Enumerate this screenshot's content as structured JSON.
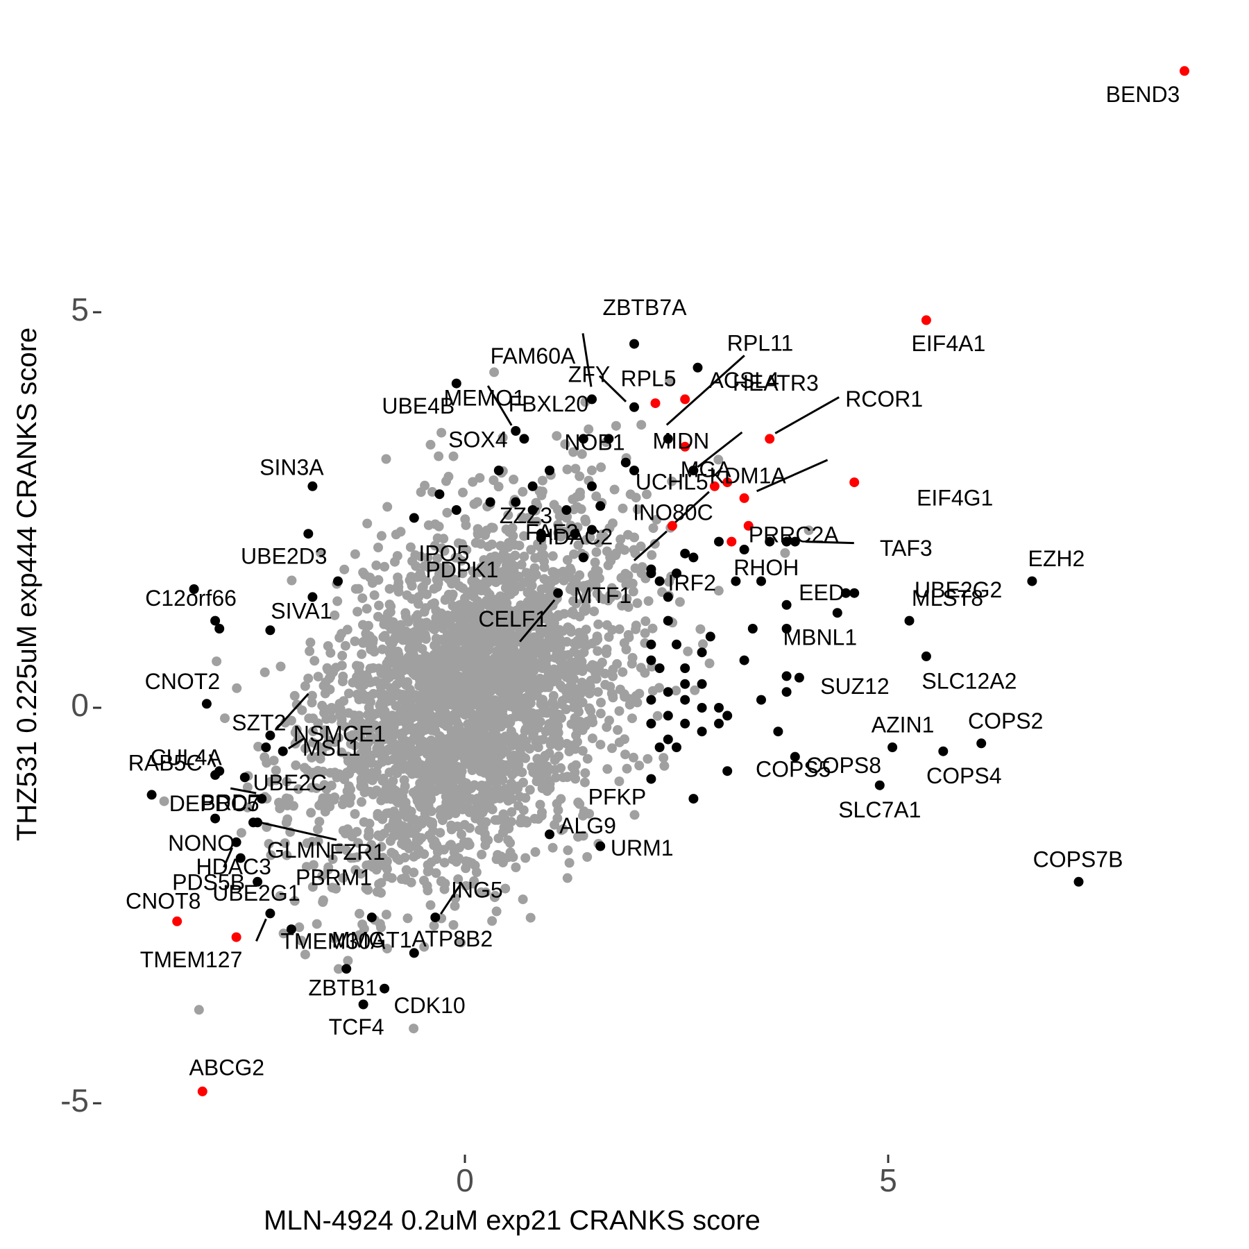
{
  "colors": {
    "background_points": "#a0a0a0",
    "hit_points": "#000000",
    "highlight_points": "#ff0000",
    "tick_text": "#4d4d4d",
    "tick_mark": "#333333"
  },
  "chart_data": {
    "type": "scatter",
    "title": "",
    "xlabel": "MLN-4924 0.2uM exp21 CRANKS score",
    "ylabel": "THZ531 0.225uM exp444 CRANKS score",
    "xlim": [
      -5.1,
      8.8
    ],
    "ylim": [
      -5.5,
      8.5
    ],
    "xticks": [
      0,
      5
    ],
    "xtick_labels": [
      "0",
      "5"
    ],
    "yticks": [
      -5,
      0,
      5
    ],
    "ytick_labels": [
      "-5",
      "0",
      "5"
    ],
    "grid": false,
    "legend": "none",
    "background_cloud": {
      "description_count": 3000,
      "center": [
        0.05,
        0.15
      ],
      "spread": [
        1.05,
        1.3
      ],
      "color": "#a0a0a0"
    },
    "unlabeled_hits": [
      [
        -3.2,
        1.5
      ],
      [
        -2.9,
        1.0
      ],
      [
        -1.8,
        1.4
      ],
      [
        -1.5,
        1.6
      ],
      [
        -0.3,
        2.7
      ],
      [
        -0.6,
        2.4
      ],
      [
        -0.1,
        2.5
      ],
      [
        0.3,
        2.6
      ],
      [
        0.6,
        2.6
      ],
      [
        0.8,
        2.8
      ],
      [
        0.9,
        2.2
      ],
      [
        0.8,
        2.5
      ],
      [
        1.2,
        2.5
      ],
      [
        1.3,
        2.2
      ],
      [
        1.5,
        2.8
      ],
      [
        1.4,
        3.4
      ],
      [
        1.7,
        3.4
      ],
      [
        1.9,
        3.1
      ],
      [
        2.0,
        3.0
      ],
      [
        2.2,
        1.7
      ],
      [
        2.3,
        1.6
      ],
      [
        2.4,
        1.4
      ],
      [
        2.5,
        1.7
      ],
      [
        2.7,
        1.9
      ],
      [
        2.4,
        1.1
      ],
      [
        2.2,
        0.8
      ],
      [
        2.5,
        0.8
      ],
      [
        2.3,
        0.5
      ],
      [
        2.6,
        0.5
      ],
      [
        2.8,
        0.3
      ],
      [
        2.4,
        0.2
      ],
      [
        2.2,
        0.1
      ],
      [
        2.6,
        0.1
      ],
      [
        2.8,
        0.0
      ],
      [
        3.0,
        0.0
      ],
      [
        2.4,
        -0.1
      ],
      [
        2.6,
        -0.2
      ],
      [
        2.8,
        -0.3
      ],
      [
        2.2,
        -0.2
      ],
      [
        2.3,
        -0.5
      ],
      [
        2.5,
        -0.5
      ],
      [
        2.2,
        -0.9
      ],
      [
        3.1,
        -0.1
      ],
      [
        3.3,
        0.6
      ],
      [
        3.5,
        0.1
      ],
      [
        3.5,
        1.6
      ],
      [
        3.6,
        2.1
      ],
      [
        3.8,
        1.3
      ],
      [
        3.8,
        1.0
      ],
      [
        3.8,
        0.4
      ],
      [
        3.8,
        0.2
      ],
      [
        3.7,
        -0.3
      ],
      [
        3.4,
        1.0
      ],
      [
        2.9,
        0.9
      ],
      [
        3.0,
        -0.2
      ],
      [
        2.8,
        0.7
      ],
      [
        2.6,
        0.3
      ],
      [
        2.2,
        0.6
      ],
      [
        2.4,
        -0.4
      ],
      [
        3.2,
        1.6
      ],
      [
        3.3,
        2.0
      ],
      [
        3.0,
        2.1
      ],
      [
        3.8,
        2.1
      ]
    ],
    "labeled_points": [
      {
        "label": "BEND3",
        "x": 8.5,
        "y": 8.05,
        "hl": true
      },
      {
        "label": "EIF4A1",
        "x": 5.45,
        "y": 4.9,
        "hl": true
      },
      {
        "label": "ZBTB7A",
        "x": 2.0,
        "y": 4.6,
        "hl": false
      },
      {
        "label": "FAM60A",
        "x": 1.5,
        "y": 3.9,
        "hl": false
      },
      {
        "label": "RPL11",
        "x": 2.75,
        "y": 4.3,
        "hl": false
      },
      {
        "label": "HEATR3",
        "x": 2.4,
        "y": 3.4,
        "hl": false
      },
      {
        "label": "MEMO1",
        "x": 0.6,
        "y": 3.5,
        "hl": false
      },
      {
        "label": "ZFY",
        "x": 2.0,
        "y": 3.8,
        "hl": false
      },
      {
        "label": "RPL5",
        "x": 2.25,
        "y": 3.85,
        "hl": true
      },
      {
        "label": "ACSL4",
        "x": 2.6,
        "y": 3.9,
        "hl": true
      },
      {
        "label": "UBE4B",
        "x": -0.1,
        "y": 4.1,
        "hl": false
      },
      {
        "label": "FBXL20",
        "x": 0.7,
        "y": 3.4,
        "hl": false
      },
      {
        "label": "MGA",
        "x": 2.6,
        "y": 3.3,
        "hl": true
      },
      {
        "label": "MIDN",
        "x": 2.7,
        "y": 3.0,
        "hl": false
      },
      {
        "label": "RCOR1",
        "x": 3.6,
        "y": 3.4,
        "hl": true
      },
      {
        "label": "SIN3A",
        "x": -1.8,
        "y": 2.8,
        "hl": false
      },
      {
        "label": "SOX4",
        "x": 0.4,
        "y": 3.0,
        "hl": false
      },
      {
        "label": "NOB1",
        "x": 1.0,
        "y": 3.0,
        "hl": false
      },
      {
        "label": "UCHL5",
        "x": 3.1,
        "y": 2.85,
        "hl": true
      },
      {
        "label": "KDM1A",
        "x": 3.3,
        "y": 2.65,
        "hl": true
      },
      {
        "label": "EIF4G1",
        "x": 4.6,
        "y": 2.85,
        "hl": true
      },
      {
        "label": "FAF2",
        "x": 1.6,
        "y": 2.55,
        "hl": false
      },
      {
        "label": "INO80C",
        "x": 2.95,
        "y": 2.8,
        "hl": true
      },
      {
        "label": "PRRC2A",
        "x": 3.35,
        "y": 2.3,
        "hl": true
      },
      {
        "label": "UBE2D3",
        "x": -1.85,
        "y": 2.2,
        "hl": false
      },
      {
        "label": "IPO5",
        "x": 0.9,
        "y": 2.15,
        "hl": false
      },
      {
        "label": "ZZZ3",
        "x": 1.5,
        "y": 2.25,
        "hl": false
      },
      {
        "label": "HDAC2",
        "x": 2.45,
        "y": 2.3,
        "hl": true
      },
      {
        "label": "TAF3",
        "x": 3.9,
        "y": 2.1,
        "hl": false
      },
      {
        "label": "RHOH",
        "x": 3.15,
        "y": 2.1,
        "hl": true
      },
      {
        "label": "IRF2",
        "x": 2.6,
        "y": 1.95,
        "hl": false
      },
      {
        "label": "MTF1",
        "x": 2.2,
        "y": 1.75,
        "hl": false
      },
      {
        "label": "EZH2",
        "x": 6.7,
        "y": 1.6,
        "hl": false
      },
      {
        "label": "PDPK1",
        "x": 1.4,
        "y": 1.9,
        "hl": false
      },
      {
        "label": "C12orf66",
        "x": -2.95,
        "y": 1.1,
        "hl": false
      },
      {
        "label": "EED",
        "x": 4.5,
        "y": 1.45,
        "hl": false
      },
      {
        "label": "UBE2G2",
        "x": 4.6,
        "y": 1.45,
        "hl": false
      },
      {
        "label": "CELF1",
        "x": 1.1,
        "y": 1.45,
        "hl": false
      },
      {
        "label": "MBNL1",
        "x": 4.4,
        "y": 1.2,
        "hl": false
      },
      {
        "label": "MLST8",
        "x": 5.25,
        "y": 1.1,
        "hl": false
      },
      {
        "label": "SIVA1",
        "x": -2.3,
        "y": 0.98,
        "hl": false
      },
      {
        "label": "SLC12A2",
        "x": 5.45,
        "y": 0.65,
        "hl": false
      },
      {
        "label": "SUZ12",
        "x": 3.95,
        "y": 0.38,
        "hl": false
      },
      {
        "label": "CNOT2",
        "x": -3.05,
        "y": 0.05,
        "hl": false
      },
      {
        "label": "NSMCE1",
        "x": -2.3,
        "y": -0.35,
        "hl": false
      },
      {
        "label": "SZT2",
        "x": -2.35,
        "y": -0.5,
        "hl": false
      },
      {
        "label": "MSL1",
        "x": -2.15,
        "y": -0.55,
        "hl": false
      },
      {
        "label": "CUL4A",
        "x": -2.9,
        "y": -0.8,
        "hl": false
      },
      {
        "label": "AZIN1",
        "x": 5.05,
        "y": -0.5,
        "hl": false
      },
      {
        "label": "COPS2",
        "x": 6.1,
        "y": -0.45,
        "hl": false
      },
      {
        "label": "COPS8",
        "x": 3.9,
        "y": -0.62,
        "hl": false
      },
      {
        "label": "COPS4",
        "x": 5.65,
        "y": -0.55,
        "hl": false
      },
      {
        "label": "RAB5C",
        "x": -2.95,
        "y": -0.85,
        "hl": false
      },
      {
        "label": "UBE2C",
        "x": -2.6,
        "y": -0.88,
        "hl": false
      },
      {
        "label": "SLC7A1",
        "x": 4.9,
        "y": -0.98,
        "hl": false
      },
      {
        "label": "COPS5",
        "x": 3.1,
        "y": -0.8,
        "hl": false
      },
      {
        "label": "PFKP",
        "x": 2.7,
        "y": -1.15,
        "hl": false
      },
      {
        "label": "DEPDC5",
        "x": -3.7,
        "y": -1.1,
        "hl": false
      },
      {
        "label": "BRD7",
        "x": -2.4,
        "y": -1.15,
        "hl": false
      },
      {
        "label": "NONO",
        "x": -2.95,
        "y": -1.4,
        "hl": false
      },
      {
        "label": "URM1",
        "x": 1.6,
        "y": -1.75,
        "hl": false
      },
      {
        "label": "GLMN",
        "x": -2.45,
        "y": -1.45,
        "hl": false
      },
      {
        "label": "FZR1",
        "x": -2.5,
        "y": -1.45,
        "hl": false
      },
      {
        "label": "PDS5B",
        "x": -2.7,
        "y": -1.7,
        "hl": false
      },
      {
        "label": "ING5",
        "x": -0.35,
        "y": -2.65,
        "hl": false
      },
      {
        "label": "COPS7B",
        "x": 7.25,
        "y": -2.2,
        "hl": false
      },
      {
        "label": "HDAC3",
        "x": -2.65,
        "y": -1.9,
        "hl": false
      },
      {
        "label": "PBRM1",
        "x": -2.45,
        "y": -2.2,
        "hl": false
      },
      {
        "label": "ALG9",
        "x": 1.0,
        "y": -1.6,
        "hl": false
      },
      {
        "label": "MMGT1",
        "x": -1.1,
        "y": -2.65,
        "hl": false
      },
      {
        "label": "CNOT8",
        "x": -3.4,
        "y": -2.7,
        "hl": true
      },
      {
        "label": "UBE2G1",
        "x": -2.3,
        "y": -2.6,
        "hl": false
      },
      {
        "label": "ATP8B2",
        "x": -0.6,
        "y": -3.1,
        "hl": false
      },
      {
        "label": "TMEM127",
        "x": -2.7,
        "y": -2.9,
        "hl": true
      },
      {
        "label": "TMEM30A",
        "x": -2.05,
        "y": -2.8,
        "hl": false
      },
      {
        "label": "ZBTB1",
        "x": -1.4,
        "y": -3.3,
        "hl": false
      },
      {
        "label": "CDK10",
        "x": -0.95,
        "y": -3.55,
        "hl": false
      },
      {
        "label": "TCF4",
        "x": -1.2,
        "y": -3.75,
        "hl": false
      },
      {
        "label": "ABCG2",
        "x": -3.1,
        "y": -4.85,
        "hl": true
      }
    ]
  }
}
